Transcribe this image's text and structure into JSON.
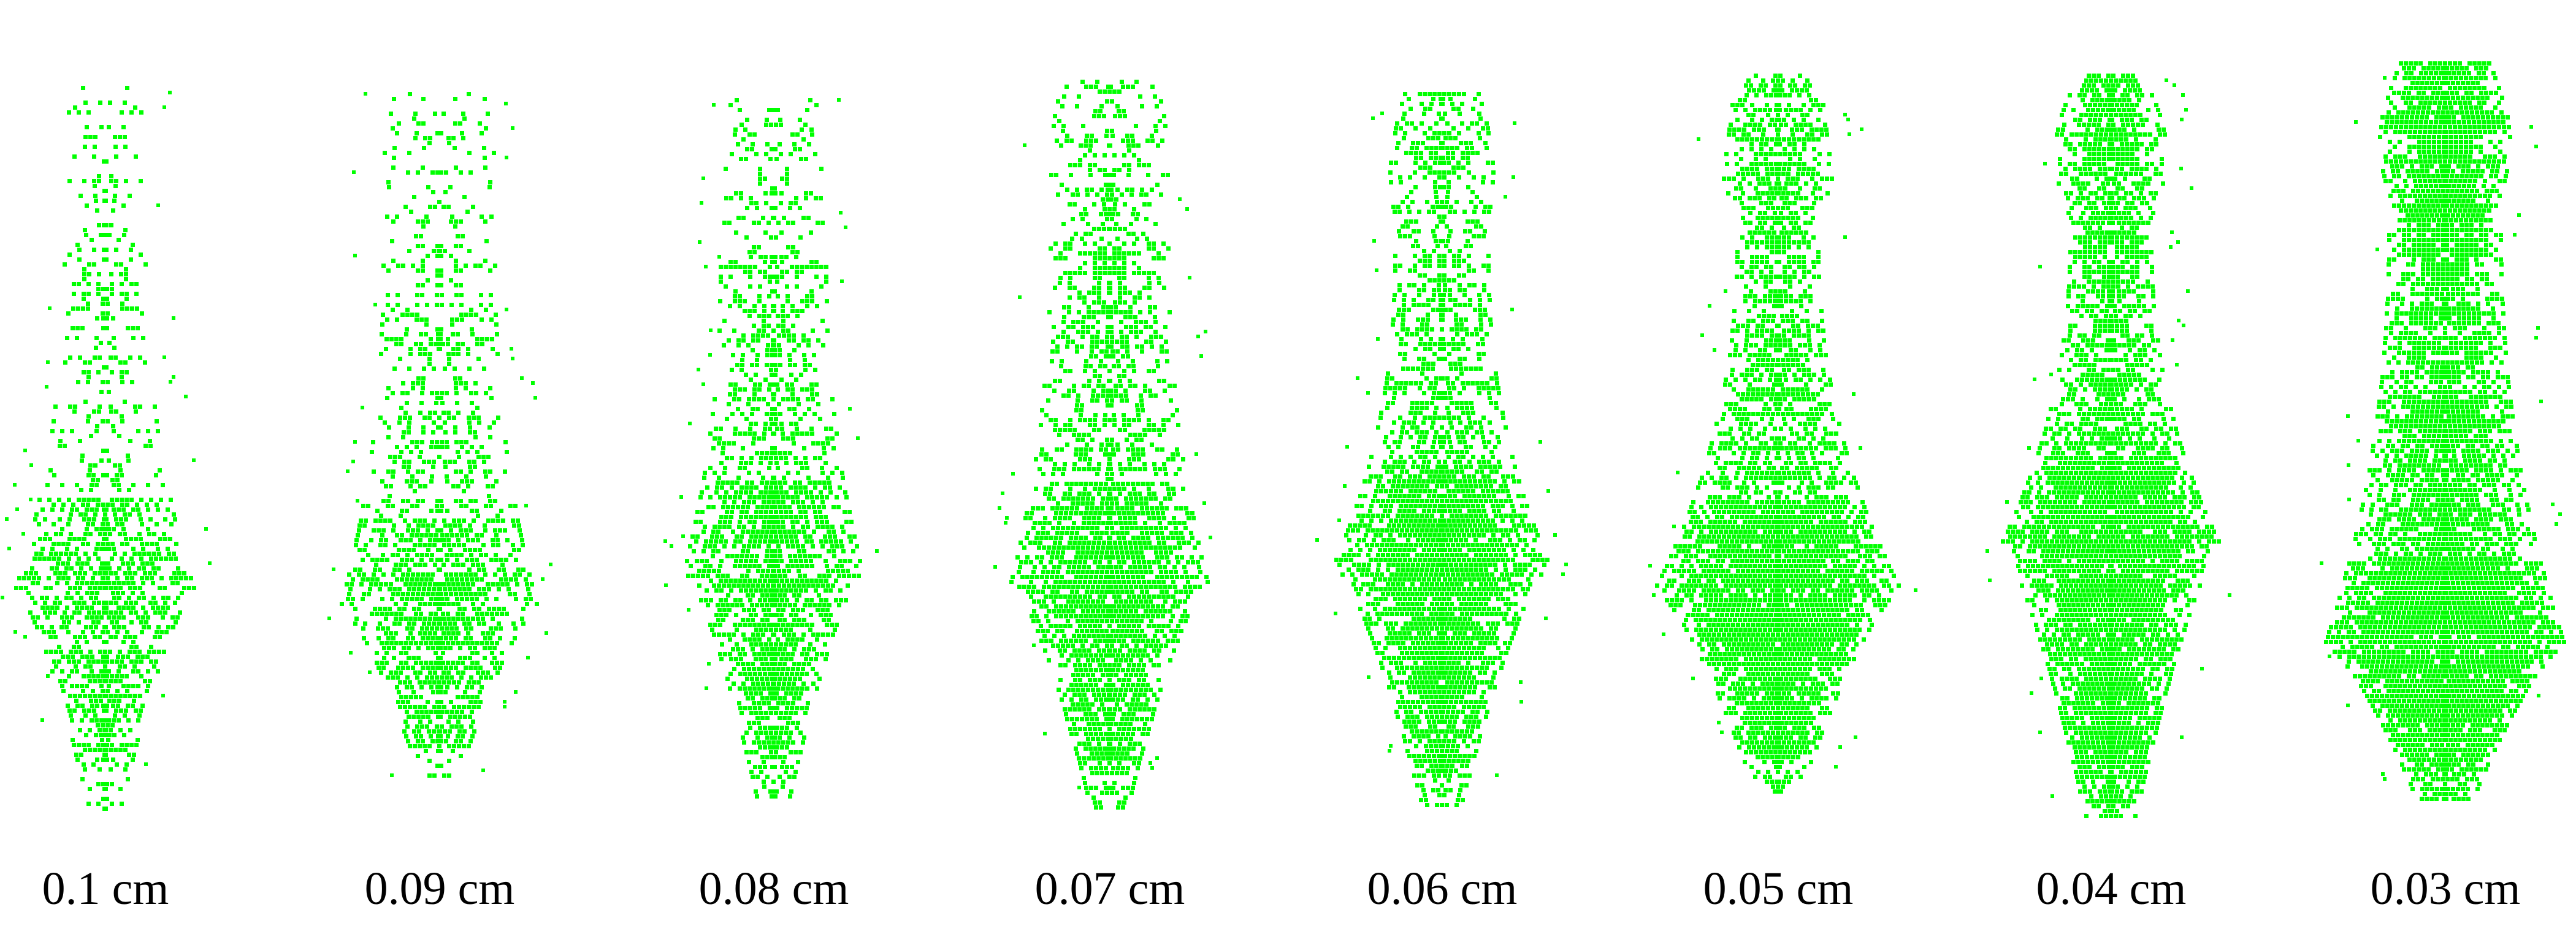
{
  "figure": {
    "particle_color": "#00ff00",
    "background_color": "#ffffff",
    "panels": [
      {
        "label": "0.1 cm"
      },
      {
        "label": "0.09 cm"
      },
      {
        "label": "0.08 cm"
      },
      {
        "label": "0.07 cm"
      },
      {
        "label": "0.06 cm"
      },
      {
        "label": "0.05 cm"
      },
      {
        "label": "0.04 cm"
      },
      {
        "label": "0.03 cm"
      }
    ]
  }
}
